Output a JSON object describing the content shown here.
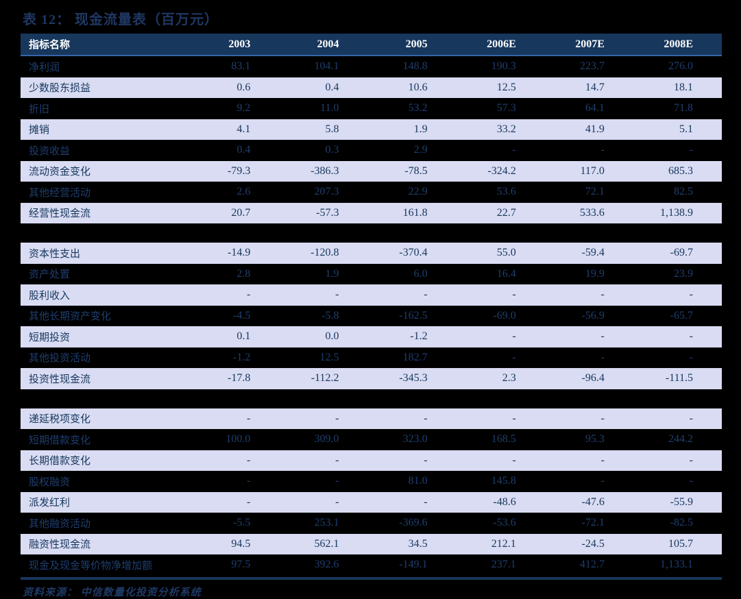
{
  "title": "表 12： 现金流量表（百万元）",
  "footer": {
    "text": "资料来源： 中信数量化投资分析系统"
  },
  "colors": {
    "page_background": "#000000",
    "header_background": "#17375D",
    "header_text": "#FFFFFF",
    "light_row_background": "#D9DCF2",
    "dark_row_background": "#000000",
    "data_text": "#17365D",
    "title_text": "#1F3864",
    "bottom_rule": "#17375D"
  },
  "table": {
    "columns": [
      "指标名称",
      "2003",
      "2004",
      "2005",
      "2006E",
      "2007E",
      "2008E"
    ],
    "sections": [
      {
        "rows": [
          {
            "label": "净利润",
            "dark": true,
            "values": [
              "83.1",
              "104.1",
              "148.8",
              "190.3",
              "223.7",
              "276.0"
            ]
          },
          {
            "label": "少数股东损益",
            "dark": false,
            "values": [
              "0.6",
              "0.4",
              "10.6",
              "12.5",
              "14.7",
              "18.1"
            ]
          },
          {
            "label": "折旧",
            "dark": true,
            "values": [
              "9.2",
              "11.0",
              "53.2",
              "57.3",
              "64.1",
              "71.8"
            ]
          },
          {
            "label": "摊销",
            "dark": false,
            "values": [
              "4.1",
              "5.8",
              "1.9",
              "33.2",
              "41.9",
              "5.1"
            ]
          },
          {
            "label": "投资收益",
            "dark": true,
            "values": [
              "0.4",
              "0.3",
              "2.9",
              "-",
              "-",
              "-"
            ]
          },
          {
            "label": "流动资金变化",
            "dark": false,
            "values": [
              "-79.3",
              "-386.3",
              "-78.5",
              "-324.2",
              "117.0",
              "685.3"
            ]
          },
          {
            "label": "其他经营活动",
            "dark": true,
            "values": [
              "2.6",
              "207.3",
              "22.9",
              "53.6",
              "72.1",
              "82.5"
            ]
          },
          {
            "label": "经营性现金流",
            "dark": false,
            "values": [
              "20.7",
              "-57.3",
              "161.8",
              "22.7",
              "533.6",
              "1,138.9"
            ]
          }
        ]
      },
      {
        "rows": [
          {
            "label": "资本性支出",
            "dark": false,
            "values": [
              "-14.9",
              "-120.8",
              "-370.4",
              "55.0",
              "-59.4",
              "-69.7"
            ]
          },
          {
            "label": "资产处置",
            "dark": true,
            "values": [
              "2.8",
              "1.9",
              "6.0",
              "16.4",
              "19.9",
              "23.9"
            ]
          },
          {
            "label": "股利收入",
            "dark": false,
            "values": [
              "-",
              "-",
              "-",
              "-",
              "-",
              "-"
            ]
          },
          {
            "label": "其他长期资产变化",
            "dark": true,
            "values": [
              "-4.5",
              "-5.8",
              "-162.5",
              "-69.0",
              "-56.9",
              "-65.7"
            ]
          },
          {
            "label": "短期投资",
            "dark": false,
            "values": [
              "0.1",
              "0.0",
              "-1.2",
              "-",
              "-",
              "-"
            ]
          },
          {
            "label": "其他投资活动",
            "dark": true,
            "values": [
              "-1.2",
              "12.5",
              "182.7",
              "-",
              "-",
              "-"
            ]
          },
          {
            "label": "投资性现金流",
            "dark": false,
            "values": [
              "-17.8",
              "-112.2",
              "-345.3",
              "2.3",
              "-96.4",
              "-111.5"
            ]
          }
        ]
      },
      {
        "rows": [
          {
            "label": "递延税项变化",
            "dark": false,
            "values": [
              "-",
              "-",
              "-",
              "-",
              "-",
              "-"
            ]
          },
          {
            "label": "短期借款变化",
            "dark": true,
            "values": [
              "100.0",
              "309.0",
              "323.0",
              "168.5",
              "95.3",
              "244.2"
            ]
          },
          {
            "label": "长期借款变化",
            "dark": false,
            "values": [
              "-",
              "-",
              "-",
              "-",
              "-",
              "-"
            ]
          },
          {
            "label": "股权融资",
            "dark": true,
            "values": [
              "-",
              "-",
              "81.0",
              "145.8",
              "-",
              "-"
            ]
          },
          {
            "label": "派发红利",
            "dark": false,
            "values": [
              "-",
              "-",
              "-",
              "-48.6",
              "-47.6",
              "-55.9"
            ]
          },
          {
            "label": "其他融资活动",
            "dark": true,
            "values": [
              "-5.5",
              "253.1",
              "-369.6",
              "-53.6",
              "-72.1",
              "-82.5"
            ]
          },
          {
            "label": "融资性现金流",
            "dark": false,
            "values": [
              "94.5",
              "562.1",
              "34.5",
              "212.1",
              "-24.5",
              "105.7"
            ]
          },
          {
            "label": "现金及现金等价物净增加额",
            "dark": true,
            "values": [
              "97.5",
              "392.6",
              "-149.1",
              "237.1",
              "412.7",
              "1,133.1"
            ]
          }
        ]
      }
    ]
  }
}
